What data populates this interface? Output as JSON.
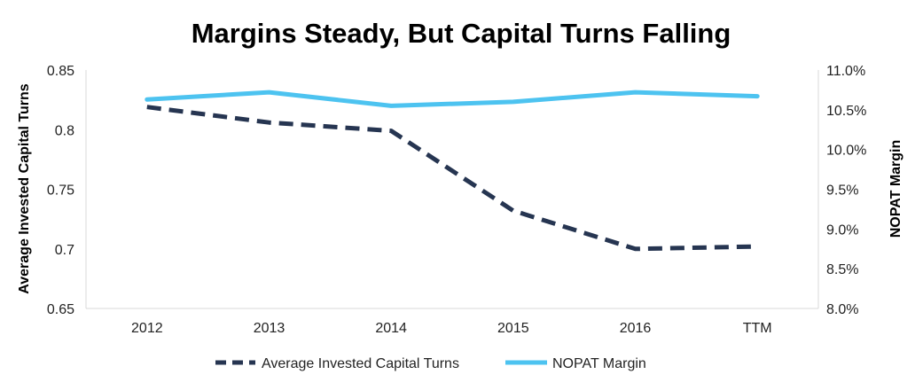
{
  "chart_data": {
    "type": "line",
    "title": "Margins Steady, But Capital Turns Falling",
    "categories": [
      "2012",
      "2013",
      "2014",
      "2015",
      "2016",
      "TTM"
    ],
    "y_left": {
      "label": "Average Invested Capital Turns",
      "lim": [
        0.65,
        0.85
      ],
      "ticks": [
        "0.65",
        "0.7",
        "0.75",
        "0.8",
        "0.85"
      ]
    },
    "y_right": {
      "label": "NOPAT Margin",
      "lim": [
        0.08,
        0.11
      ],
      "ticks": [
        "8.0%",
        "8.5%",
        "9.0%",
        "9.5%",
        "10.0%",
        "10.5%",
        "11.0%"
      ]
    },
    "series": [
      {
        "name": "Average Invested Capital Turns",
        "axis": "left",
        "style": "dashed",
        "color": "#263551",
        "values": [
          0.819,
          0.806,
          0.799,
          0.732,
          0.7,
          0.702
        ]
      },
      {
        "name": "NOPAT Margin",
        "axis": "right",
        "style": "solid",
        "color": "#4DC3F0",
        "values": [
          0.1063,
          0.1072,
          0.1055,
          0.106,
          0.1072,
          0.1067
        ]
      }
    ],
    "grid": false,
    "legend": "bottom-center"
  }
}
